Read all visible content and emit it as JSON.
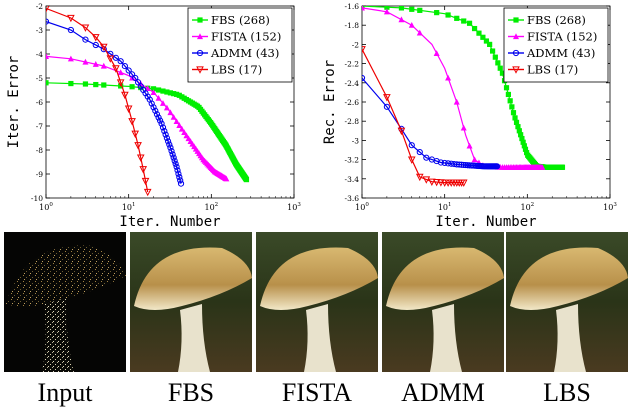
{
  "chart_data": [
    {
      "type": "line",
      "xlabel": "Iter. Number",
      "ylabel": "Iter. Error",
      "xscale": "log",
      "xlim": [
        1,
        1000
      ],
      "ylim": [
        -10,
        -2
      ],
      "x_ticks": [
        "10^0",
        "10^1",
        "10^2",
        "10^3"
      ],
      "y_ticks": [
        "-2",
        "-3",
        "-4",
        "-5",
        "-6",
        "-7",
        "-8",
        "-9",
        "-10"
      ],
      "legend_position": "top-right",
      "series": [
        {
          "name": "FBS (268)",
          "color": "#00ee00",
          "marker": "square",
          "x": [
            1,
            3,
            10,
            20,
            40,
            70,
            100,
            150,
            200,
            268
          ],
          "y": [
            -5.2,
            -5.25,
            -5.35,
            -5.45,
            -5.7,
            -6.2,
            -6.9,
            -7.8,
            -8.6,
            -9.25
          ]
        },
        {
          "name": "FISTA (152)",
          "color": "#ff00ff",
          "marker": "triangle-up",
          "x": [
            1,
            2,
            5,
            10,
            20,
            30,
            50,
            80,
            110,
            152
          ],
          "y": [
            -4.1,
            -4.2,
            -4.5,
            -4.9,
            -5.6,
            -6.3,
            -7.4,
            -8.4,
            -8.9,
            -9.2
          ]
        },
        {
          "name": "ADMM (43)",
          "color": "#0000ee",
          "marker": "circle",
          "x": [
            1,
            2,
            3,
            5,
            8,
            12,
            18,
            25,
            32,
            38,
            43
          ],
          "y": [
            -2.65,
            -3.0,
            -3.4,
            -3.8,
            -4.3,
            -5.0,
            -5.9,
            -6.9,
            -7.9,
            -8.7,
            -9.4
          ]
        },
        {
          "name": "LBS (17)",
          "color": "#ee0000",
          "marker": "triangle-down",
          "x": [
            1,
            2,
            3,
            4,
            5,
            7,
            9,
            11,
            13,
            15,
            17
          ],
          "y": [
            -2.1,
            -2.5,
            -2.9,
            -3.3,
            -3.7,
            -4.6,
            -5.7,
            -6.8,
            -7.8,
            -8.8,
            -9.75
          ]
        }
      ]
    },
    {
      "type": "line",
      "xlabel": "Iter. Number",
      "ylabel": "Rec. Error",
      "xscale": "log",
      "xlim": [
        1,
        1000
      ],
      "ylim": [
        -3.6,
        -1.6
      ],
      "x_ticks": [
        "10^0",
        "10^1",
        "10^2",
        "10^3"
      ],
      "y_ticks": [
        "-1.6",
        "-1.8",
        "-2",
        "-2.2",
        "-2.4",
        "-2.6",
        "-2.8",
        "-3",
        "-3.2",
        "-3.4",
        "-3.6"
      ],
      "legend_position": "top-right",
      "series": [
        {
          "name": "FBS (268)",
          "color": "#00ee00",
          "marker": "square",
          "x": [
            1,
            3,
            10,
            20,
            35,
            50,
            70,
            100,
            130,
            170,
            268
          ],
          "y": [
            -1.6,
            -1.62,
            -1.68,
            -1.78,
            -2.0,
            -2.3,
            -2.75,
            -3.15,
            -3.27,
            -3.28,
            -3.28
          ]
        },
        {
          "name": "FISTA (152)",
          "color": "#ff00ff",
          "marker": "triangle-up",
          "x": [
            1,
            2,
            4,
            7,
            10,
            14,
            18,
            23,
            30,
            50,
            152
          ],
          "y": [
            -1.62,
            -1.66,
            -1.8,
            -2.0,
            -2.25,
            -2.6,
            -2.95,
            -3.2,
            -3.27,
            -3.28,
            -3.28
          ]
        },
        {
          "name": "ADMM (43)",
          "color": "#0000ee",
          "marker": "circle",
          "x": [
            1,
            2,
            3,
            4,
            6,
            9,
            14,
            20,
            30,
            43
          ],
          "y": [
            -2.35,
            -2.65,
            -2.88,
            -3.05,
            -3.18,
            -3.23,
            -3.25,
            -3.26,
            -3.27,
            -3.27
          ]
        },
        {
          "name": "LBS (17)",
          "color": "#ee0000",
          "marker": "triangle-down",
          "x": [
            1,
            2,
            3,
            4,
            5,
            7,
            10,
            13,
            17
          ],
          "y": [
            -2.05,
            -2.55,
            -2.9,
            -3.2,
            -3.38,
            -3.43,
            -3.44,
            -3.44,
            -3.44
          ]
        }
      ]
    }
  ],
  "images": {
    "captions": [
      "Input",
      "FBS",
      "FISTA",
      "ADMM",
      "LBS"
    ]
  }
}
